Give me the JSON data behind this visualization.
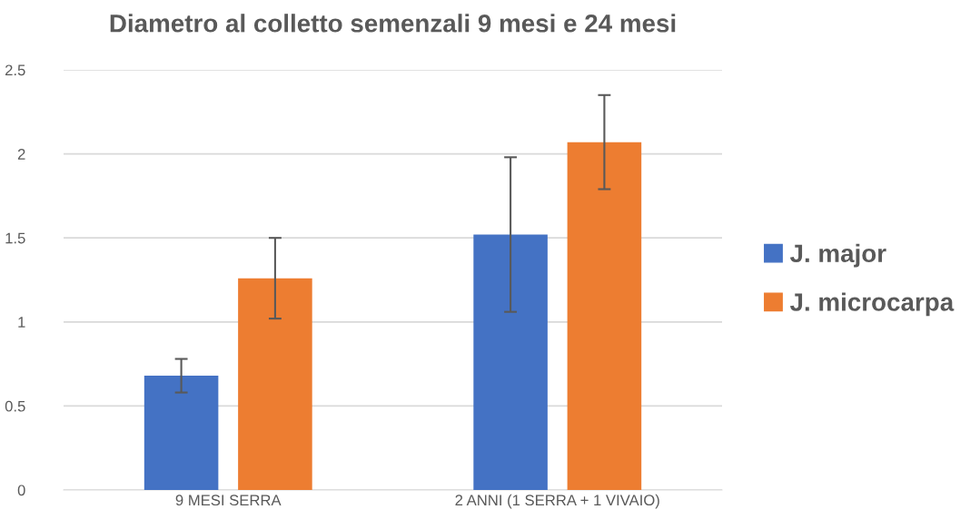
{
  "chart_data": {
    "type": "bar",
    "title": "Diametro al colletto semenzali 9 mesi e 24 mesi",
    "categories": [
      "9 MESI SERRA",
      "2 ANNI (1 SERRA + 1 VIVAIO)"
    ],
    "series": [
      {
        "name": "J. major",
        "color": "#4472c4",
        "values": [
          0.68,
          1.52
        ],
        "errors": [
          0.1,
          0.46
        ]
      },
      {
        "name": "J. microcarpa",
        "color": "#ed7d31",
        "values": [
          1.26,
          2.07
        ],
        "errors": [
          0.24,
          0.28
        ]
      }
    ],
    "ylim": [
      0,
      2.5
    ],
    "yticks": [
      0,
      0.5,
      1,
      1.5,
      2,
      2.5
    ],
    "grid": "y",
    "legend": "right"
  }
}
